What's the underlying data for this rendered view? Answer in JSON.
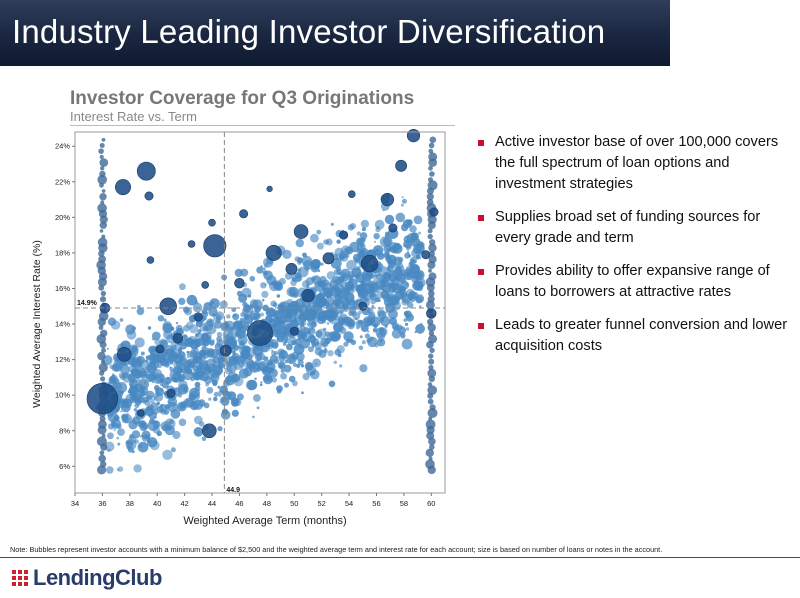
{
  "header": {
    "title": "Industry Leading Investor Diversification"
  },
  "chart_header": {
    "title": "Investor Coverage for Q3 Originations",
    "subtitle": "Interest  Rate vs. Term"
  },
  "chart_data": {
    "type": "scatter",
    "title": "Investor Coverage for Q3 Originations",
    "subtitle": "Interest  Rate vs. Term",
    "xlabel": "Weighted Average Term (months)",
    "ylabel": "Weighted Average Interest Rate (%)",
    "xlim": [
      34,
      61
    ],
    "ylim": [
      4.5,
      24.8
    ],
    "xticks": [
      34,
      36,
      38,
      40,
      42,
      44,
      46,
      48,
      50,
      52,
      54,
      56,
      58,
      60
    ],
    "yticks": [
      6,
      8,
      10,
      12,
      14,
      16,
      18,
      20,
      22,
      24
    ],
    "ytick_labels": [
      "6%",
      "8%",
      "10%",
      "12%",
      "14%",
      "16%",
      "18%",
      "20%",
      "22%",
      "24%"
    ],
    "grid": false,
    "bubble_color": "#2a75b8",
    "bubble_color_dark": "#1f4f86",
    "reference_lines": [
      {
        "axis": "x",
        "value": 44.9,
        "label": "44.9"
      },
      {
        "axis": "y",
        "value": 14.9,
        "label": "14.9%"
      }
    ],
    "bubbles": [
      [
        36.0,
        9.8,
        2.2
      ],
      [
        39.2,
        22.6,
        1.3
      ],
      [
        37.5,
        21.7,
        1.1
      ],
      [
        39.4,
        21.2,
        0.6
      ],
      [
        44.2,
        18.4,
        1.6
      ],
      [
        40.8,
        15.0,
        1.2
      ],
      [
        47.5,
        13.5,
        1.8
      ],
      [
        43.8,
        8.0,
        1.0
      ],
      [
        37.6,
        12.3,
        1.0
      ],
      [
        46.3,
        20.2,
        0.6
      ],
      [
        44.0,
        19.7,
        0.5
      ],
      [
        42.5,
        18.5,
        0.5
      ],
      [
        48.5,
        18.0,
        1.1
      ],
      [
        50.5,
        19.2,
        1.0
      ],
      [
        49.8,
        17.1,
        0.8
      ],
      [
        52.5,
        17.7,
        0.8
      ],
      [
        55.5,
        17.4,
        1.2
      ],
      [
        56.8,
        21.0,
        0.9
      ],
      [
        57.8,
        22.9,
        0.8
      ],
      [
        58.7,
        24.6,
        0.9
      ],
      [
        57.2,
        19.4,
        0.6
      ],
      [
        60.0,
        14.6,
        0.7
      ],
      [
        59.6,
        17.9,
        0.6
      ],
      [
        41.5,
        13.2,
        0.7
      ],
      [
        43.0,
        14.4,
        0.6
      ],
      [
        46.0,
        16.3,
        0.7
      ],
      [
        45.0,
        12.5,
        0.8
      ],
      [
        51.0,
        15.6,
        0.9
      ],
      [
        53.6,
        19.0,
        0.6
      ],
      [
        41.0,
        10.1,
        0.6
      ],
      [
        38.8,
        9.0,
        0.5
      ],
      [
        39.5,
        17.6,
        0.5
      ],
      [
        50.0,
        13.6,
        0.6
      ],
      [
        55.0,
        15.0,
        0.6
      ],
      [
        54.2,
        21.3,
        0.5
      ],
      [
        48.2,
        21.6,
        0.4
      ],
      [
        36.2,
        14.9,
        0.7
      ],
      [
        40.2,
        12.6,
        0.6
      ],
      [
        43.5,
        16.2,
        0.5
      ],
      [
        60.2,
        20.3,
        0.6
      ]
    ]
  },
  "bullets": [
    "Active investor base of over 100,000 covers the full spectrum of loan options and investment strategies",
    "Supplies broad set of funding sources for every grade and term",
    "Provides ability to offer expansive range of loans to borrowers at attractive rates",
    "Leads to greater funnel conversion and lower acquisition costs"
  ],
  "note": "Note: Bubbles represent investor accounts with a minimum balance of $2,500 and the weighted  average term and  interest rate for each account; size is based on number of loans or notes in the account.",
  "logo": {
    "text": "LendingClub",
    "icon": "lendingclub-grid-icon"
  }
}
